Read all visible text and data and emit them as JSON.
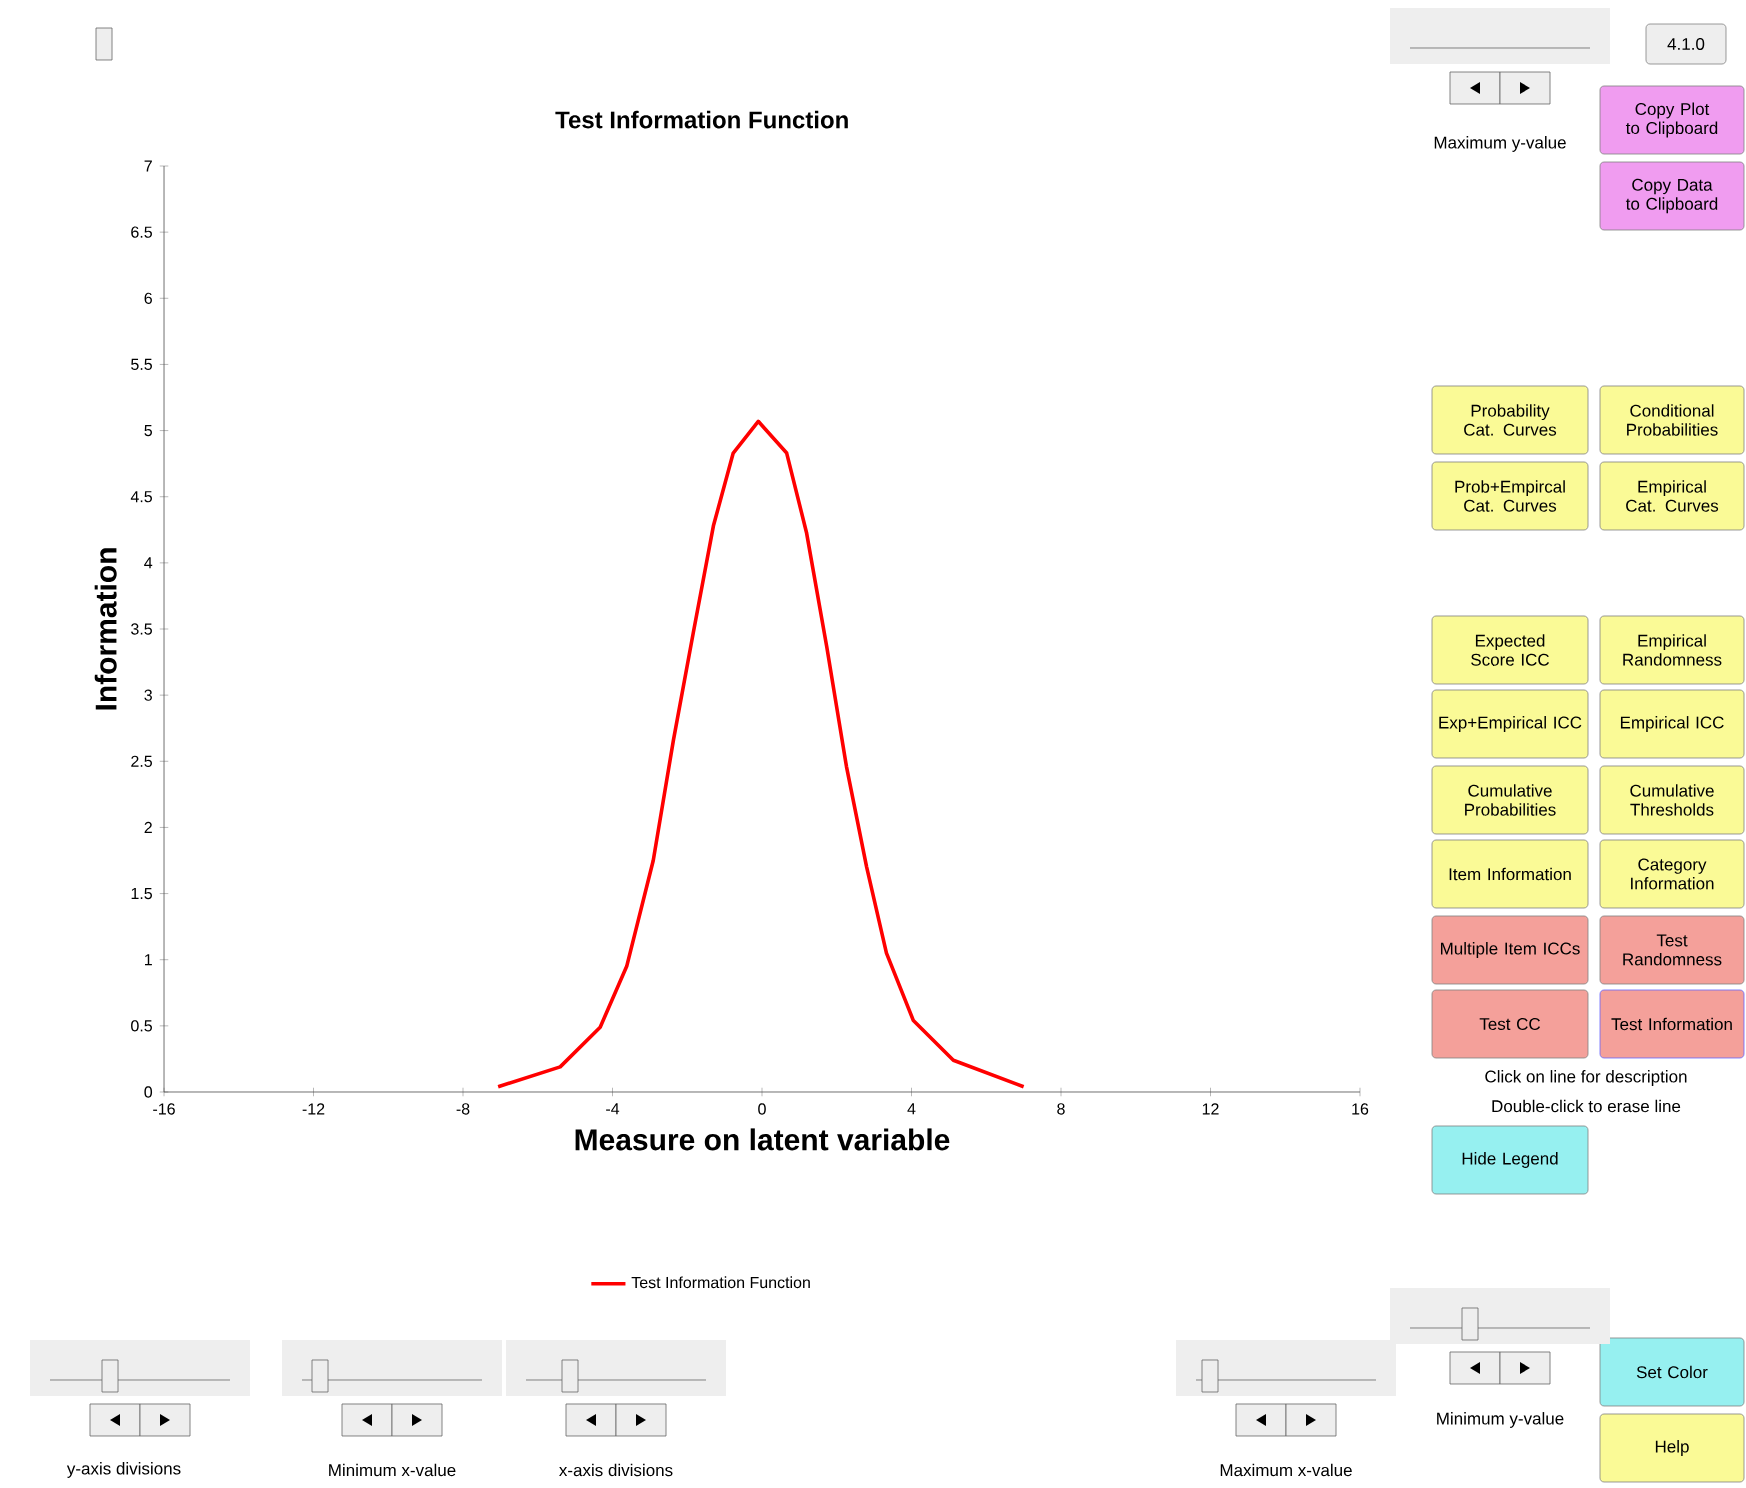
{
  "chart_data": {
    "type": "line",
    "title": "Test Information Function",
    "xlabel": "Measure on latent variable",
    "ylabel": "Information",
    "xlim": [
      -16,
      16
    ],
    "ylim": [
      0,
      7
    ],
    "xticks": [
      -16,
      -12,
      -8,
      -4,
      0,
      4,
      8,
      12,
      16
    ],
    "yticks": [
      0,
      0.5,
      1,
      1.5,
      2,
      2.5,
      3,
      3.5,
      4,
      4.5,
      5,
      5.5,
      6,
      6.5,
      7
    ],
    "legend": "bottom",
    "marker": "none",
    "series": [
      {
        "name": "Test Information Function",
        "color": "#ff0000",
        "x": [
          -7.06,
          -5.4,
          -4.33,
          -3.62,
          -2.91,
          -2.37,
          -1.84,
          -1.3,
          -0.77,
          -0.1,
          0.66,
          1.19,
          1.73,
          2.26,
          2.8,
          3.33,
          4.05,
          5.12,
          7.0
        ],
        "values": [
          0.04,
          0.19,
          0.49,
          0.95,
          1.75,
          2.66,
          3.47,
          4.28,
          4.83,
          5.07,
          4.83,
          4.23,
          3.37,
          2.46,
          1.7,
          1.05,
          0.54,
          0.24,
          0.04
        ]
      }
    ],
    "annotations": [
      "4.1.0",
      "Maximum y-value",
      "Copy Plot to Clipboard",
      "Copy Data to Clipboard",
      "Probability Cat. Curves",
      "Conditional Probabilities",
      "Prob+Empircal Cat. Curves",
      "Empirical Cat. Curves",
      "Expected Score ICC",
      "Empirical Randomness",
      "Exp+Empirical ICC",
      "Empirical ICC",
      "Cumulative Probabilities",
      "Cumulative Thresholds",
      "Item Information",
      "Category Information",
      "Multiple Item ICCs",
      "Test Randomness",
      "Test CC",
      "Test Information",
      "Click on line for description",
      "Double-click to erase line",
      "Hide Legend",
      "Minimum y-value",
      "Set Color",
      "Help",
      "y-axis divisions",
      "Minimum x-value",
      "x-axis divisions",
      "Maximum x-value"
    ]
  }
}
